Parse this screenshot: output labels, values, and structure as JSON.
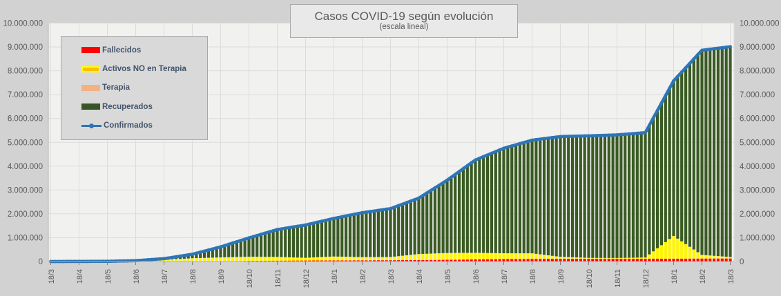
{
  "header": {
    "title": "Casos COVID-19 según evolución",
    "subtitle": "(escala lineal)"
  },
  "legend": {
    "items": [
      {
        "label": "Fallecidos",
        "swatch": "#FF0000"
      },
      {
        "label": "Activos NO en Terapia",
        "swatch": "#FFC000",
        "swatch_border": "#FFFF00"
      },
      {
        "label": "Terapia",
        "swatch": "#F4B183"
      },
      {
        "label": "Recuperados",
        "swatch": "#375623"
      },
      {
        "label": "Confirmados",
        "swatch_line": "#2E75B6"
      }
    ]
  },
  "chart_data": {
    "type": "bar",
    "subtype": "stacked-columns-with-line-overlay",
    "title": "Casos COVID-19 según evolución",
    "subtitle": "(escala lineal)",
    "xlabel": "",
    "ylabel": "",
    "grid": true,
    "legend_position": "top-left-overlay",
    "ylim": [
      0,
      10000000
    ],
    "y_step": 1000000,
    "y_tick_labels": [
      "0",
      "1.000.000",
      "2.000.000",
      "3.000.000",
      "4.000.000",
      "5.000.000",
      "6.000.000",
      "7.000.000",
      "8.000.000",
      "9.000.000",
      "10.000.000"
    ],
    "y_axis_sides": [
      "left",
      "right"
    ],
    "categories": [
      "18/3",
      "18/4",
      "18/5",
      "18/6",
      "18/7",
      "18/8",
      "18/9",
      "18/10",
      "18/11",
      "18/12",
      "18/1",
      "18/2",
      "18/3",
      "18/4",
      "18/5",
      "18/6",
      "18/7",
      "18/8",
      "18/9",
      "18/10",
      "18/11",
      "18/12",
      "18/1",
      "18/2",
      "18/3"
    ],
    "series": [
      {
        "name": "Fallecidos",
        "type": "bar",
        "color": "#FF0000",
        "values": [
          3,
          130,
          300,
          900,
          2200,
          6000,
          12600,
          26000,
          36000,
          41700,
          46000,
          50600,
          54500,
          59000,
          72000,
          88000,
          101000,
          109000,
          114000,
          115700,
          116200,
          116900,
          118900,
          125000,
          127500
        ]
      },
      {
        "name": "Activos NO en Terapia",
        "type": "bar",
        "color": "#FFF500",
        "values": [
          95,
          1800,
          4600,
          24000,
          64000,
          130000,
          155000,
          170000,
          150000,
          110000,
          160000,
          130000,
          130000,
          250000,
          280000,
          270000,
          240000,
          230000,
          80000,
          35000,
          30000,
          50000,
          950000,
          150000,
          60000
        ]
      },
      {
        "name": "Terapia",
        "type": "bar",
        "color": "#F4B183",
        "values": [
          2,
          100,
          200,
          700,
          1200,
          2400,
          3100,
          3800,
          3700,
          3200,
          3500,
          3400,
          3400,
          4900,
          6700,
          7600,
          6000,
          4300,
          2600,
          1600,
          1300,
          1100,
          2700,
          2200,
          1600
        ]
      },
      {
        "name": "Recuperados",
        "type": "bar",
        "color": "#3A5B23",
        "values": [
          0,
          670,
          3000,
          9400,
          51600,
          166600,
          442300,
          790200,
          1149300,
          1376100,
          1597500,
          1862000,
          2030100,
          2344100,
          3052300,
          3893400,
          4402000,
          4745700,
          5043400,
          5119700,
          5164500,
          5236000,
          6506400,
          8583800,
          8821900
        ]
      },
      {
        "name": "Confirmados",
        "type": "line",
        "color": "#2E75B6",
        "values": [
          100,
          2700,
          8100,
          35000,
          119000,
          305000,
          613000,
          990000,
          1339000,
          1531000,
          1807000,
          2046000,
          2218000,
          2658000,
          3411000,
          4259000,
          4749000,
          5089000,
          5240000,
          5272000,
          5312000,
          5404000,
          7578000,
          8861000,
          9011000
        ]
      }
    ],
    "colors": {
      "page_background": "#d2d2d2",
      "plot_background": "#f1f1f0",
      "gridline": "#dcdcdc",
      "axis_line": "#b3b3b3",
      "tick_mark": "#7f7f7f",
      "tick_label": "#595959"
    }
  }
}
